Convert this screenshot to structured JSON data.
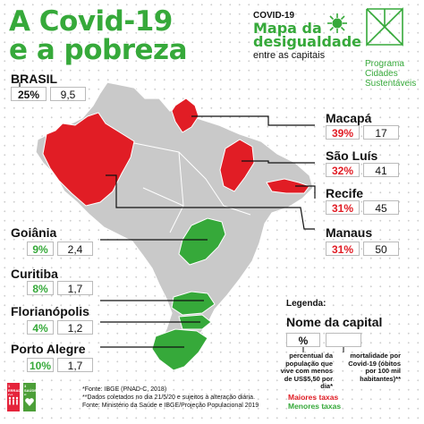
{
  "title": {
    "line1": "A Covid-19",
    "line2": "e a pobreza"
  },
  "subtitle": {
    "kicker": "COVID-19",
    "line1": "Mapa da",
    "line2": "desigualdade",
    "line3": "entre as capitais"
  },
  "logo": {
    "line1": "Programa",
    "line2": "Cidades",
    "line3": "Sustentáveis"
  },
  "brasil": {
    "name": "BRASIL",
    "pct": "25%",
    "val": "9,5"
  },
  "cities_right": [
    {
      "name": "Macapá",
      "pct": "39%",
      "val": "17"
    },
    {
      "name": "São Luís",
      "pct": "32%",
      "val": "41"
    },
    {
      "name": "Recife",
      "pct": "31%",
      "val": "45"
    },
    {
      "name": "Manaus",
      "pct": "31%",
      "val": "50"
    }
  ],
  "cities_left": [
    {
      "name": "Goiânia",
      "pct": "9%",
      "val": "2,4"
    },
    {
      "name": "Curitiba",
      "pct": "8%",
      "val": "1,7"
    },
    {
      "name": "Florianópolis",
      "pct": "4%",
      "val": "1,2"
    },
    {
      "name": "Porto Alegre",
      "pct": "10%",
      "val": "1,7"
    }
  ],
  "legend": {
    "label": "Legenda:",
    "name": "Nome da capital",
    "pct": "%",
    "left_note": "percentual da população que vive com menos de US$5,50 por dia*",
    "right_note": "mortalidade por Covid-19 (óbitos por 100 mil habitantes)**",
    "high": "Maiores taxas",
    "low": "Menores taxas"
  },
  "footnotes": {
    "f1": "*Fonte: IBGE (PNAD-C, 2018)",
    "f2": "**Dados coletados no dia 21/5/20 e sujeitos à alteração diária.",
    "f3": "Fonte: Ministério da Saúde e IBGE/Projeção Populacional 2019"
  },
  "sdg": {
    "s1": "1 ERRADICAÇÃO DA POBREZA",
    "s3": "3 SAÚDE E BEM-ESTAR"
  },
  "colors": {
    "green": "#36a93a",
    "red": "#e11d25",
    "gray": "#c9c9c9",
    "lines": "#111111"
  }
}
